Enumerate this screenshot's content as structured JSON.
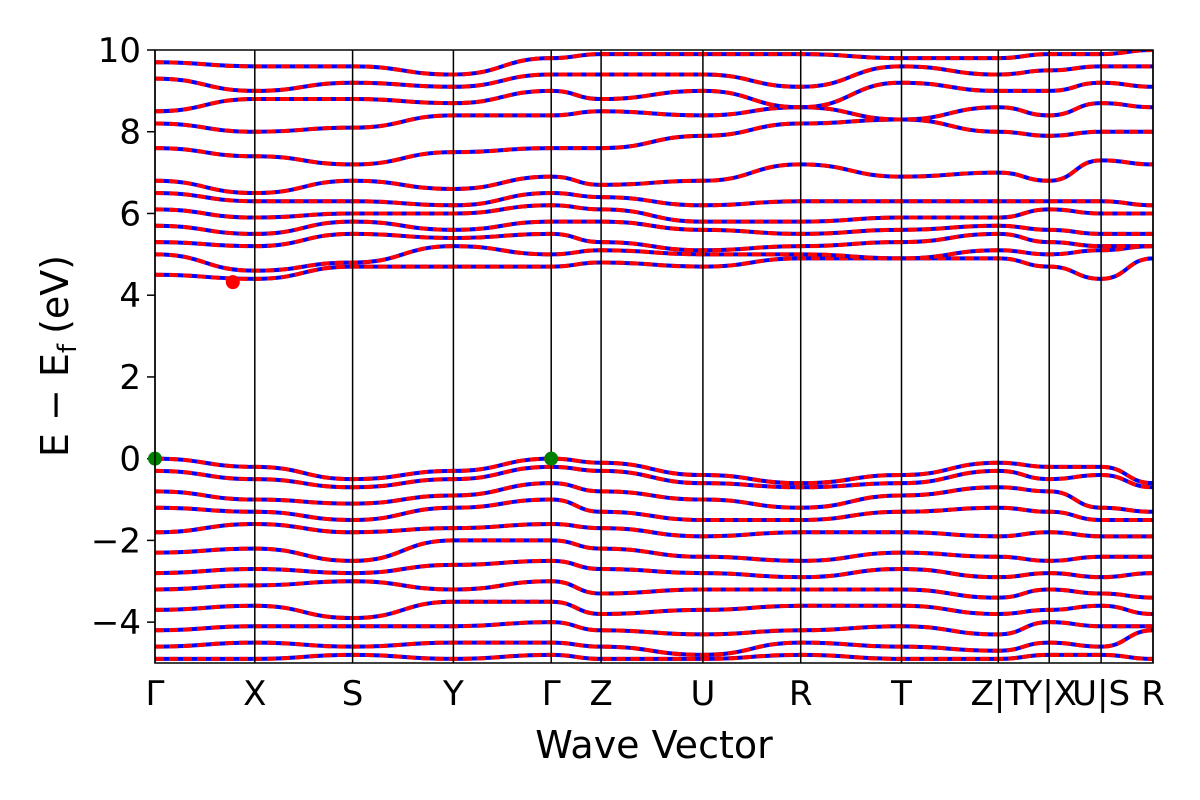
{
  "chart_data": {
    "type": "band-structure",
    "xlabel": "Wave Vector",
    "ylabel": {
      "main": "E − E",
      "sub": "f",
      "unit": "(eV)"
    },
    "xlim": [
      0,
      10
    ],
    "ylim": [
      -5,
      10
    ],
    "xticks": [
      {
        "value": 0,
        "label": "Γ"
      },
      {
        "value": 1.0,
        "label": "X"
      },
      {
        "value": 1.98,
        "label": "S"
      },
      {
        "value": 2.99,
        "label": "Y"
      },
      {
        "value": 3.97,
        "label": "Γ"
      },
      {
        "value": 4.47,
        "label": "Z"
      },
      {
        "value": 5.49,
        "label": "U"
      },
      {
        "value": 6.47,
        "label": "R"
      },
      {
        "value": 7.48,
        "label": "T"
      },
      {
        "value": 8.45,
        "label": "Z|T"
      },
      {
        "value": 8.96,
        "label": "Y|X"
      },
      {
        "value": 9.48,
        "label": "U|S"
      },
      {
        "value": 10,
        "label": "R"
      }
    ],
    "yticks": [
      {
        "value": -4,
        "label": "−4"
      },
      {
        "value": -2,
        "label": "−2"
      },
      0,
      2,
      4,
      6,
      8,
      10
    ],
    "x": [
      0,
      1.0,
      1.98,
      2.99,
      3.97,
      4.47,
      5.49,
      6.47,
      7.48,
      8.45,
      8.96,
      9.48,
      10
    ],
    "line_colors": [
      "#0000ff",
      "#ff0000"
    ],
    "series": [
      {
        "values": [
          4.5,
          4.4,
          4.7,
          4.7,
          4.7,
          4.8,
          4.7,
          4.9,
          4.9,
          4.9,
          4.7,
          4.4,
          4.9
        ]
      },
      {
        "values": [
          5.0,
          4.6,
          4.8,
          5.2,
          5.0,
          5.1,
          5.0,
          5.0,
          4.9,
          5.1,
          5.0,
          5.1,
          5.2
        ]
      },
      {
        "values": [
          5.3,
          5.2,
          5.5,
          5.4,
          5.5,
          5.3,
          5.1,
          5.2,
          5.3,
          5.5,
          5.3,
          5.2,
          5.2
        ]
      },
      {
        "values": [
          5.7,
          5.5,
          5.8,
          5.6,
          5.8,
          5.8,
          5.6,
          5.5,
          5.6,
          5.7,
          5.6,
          5.5,
          5.5
        ]
      },
      {
        "values": [
          6.1,
          5.9,
          6.0,
          6.0,
          6.2,
          6.1,
          5.8,
          5.8,
          5.9,
          5.9,
          6.1,
          6.0,
          6.0
        ]
      },
      {
        "values": [
          6.5,
          6.3,
          6.3,
          6.2,
          6.5,
          6.4,
          6.2,
          6.3,
          6.3,
          6.3,
          6.3,
          6.3,
          6.2
        ]
      },
      {
        "values": [
          6.8,
          6.5,
          6.8,
          6.6,
          6.9,
          6.7,
          6.8,
          7.2,
          6.9,
          7.0,
          6.8,
          7.3,
          7.2
        ]
      },
      {
        "values": [
          7.6,
          7.4,
          7.2,
          7.5,
          7.6,
          7.6,
          7.9,
          8.2,
          8.3,
          8.0,
          7.9,
          8.0,
          8.0
        ]
      },
      {
        "values": [
          8.2,
          8.0,
          8.1,
          8.4,
          8.4,
          8.5,
          8.4,
          8.6,
          8.3,
          8.6,
          8.4,
          8.7,
          8.6
        ]
      },
      {
        "values": [
          8.5,
          8.8,
          8.8,
          8.7,
          9.0,
          8.8,
          9.0,
          8.6,
          9.2,
          9.0,
          9.0,
          9.2,
          9.1
        ]
      },
      {
        "values": [
          9.3,
          9.0,
          9.2,
          9.1,
          9.4,
          9.4,
          9.4,
          9.1,
          9.6,
          9.4,
          9.5,
          9.6,
          9.6
        ]
      },
      {
        "values": [
          9.7,
          9.6,
          9.6,
          9.4,
          9.8,
          9.9,
          9.9,
          9.9,
          9.8,
          9.8,
          9.9,
          9.9,
          10.0
        ]
      },
      {
        "values": [
          0,
          -0.2,
          -0.5,
          -0.3,
          0,
          -0.1,
          -0.4,
          -0.6,
          -0.4,
          -0.1,
          -0.2,
          -0.2,
          -0.6
        ]
      },
      {
        "values": [
          -0.3,
          -0.5,
          -0.7,
          -0.5,
          -0.2,
          -0.3,
          -0.6,
          -0.7,
          -0.6,
          -0.3,
          -0.5,
          -0.4,
          -0.7
        ]
      },
      {
        "values": [
          -0.8,
          -1.0,
          -1.1,
          -0.9,
          -0.6,
          -0.8,
          -1.0,
          -1.2,
          -0.9,
          -0.7,
          -0.8,
          -1.2,
          -1.3
        ]
      },
      {
        "values": [
          -1.2,
          -1.3,
          -1.5,
          -1.2,
          -1.0,
          -1.3,
          -1.5,
          -1.5,
          -1.3,
          -1.2,
          -1.3,
          -1.5,
          -1.5
        ]
      },
      {
        "values": [
          -1.8,
          -1.6,
          -1.8,
          -1.7,
          -1.6,
          -1.7,
          -1.9,
          -1.8,
          -1.8,
          -1.9,
          -1.8,
          -1.9,
          -1.9
        ]
      },
      {
        "values": [
          -2.3,
          -2.2,
          -2.5,
          -2.0,
          -2.0,
          -2.2,
          -2.4,
          -2.5,
          -2.3,
          -2.4,
          -2.5,
          -2.4,
          -2.4
        ]
      },
      {
        "values": [
          -2.8,
          -2.7,
          -2.8,
          -2.6,
          -2.5,
          -2.7,
          -2.8,
          -2.9,
          -2.7,
          -2.9,
          -2.8,
          -2.9,
          -2.8
        ]
      },
      {
        "values": [
          -3.2,
          -3.1,
          -3.0,
          -3.2,
          -3.0,
          -3.3,
          -3.2,
          -3.2,
          -3.2,
          -3.4,
          -3.2,
          -3.3,
          -3.4
        ]
      },
      {
        "values": [
          -3.7,
          -3.6,
          -3.9,
          -3.5,
          -3.5,
          -3.8,
          -3.7,
          -3.6,
          -3.6,
          -3.8,
          -3.7,
          -3.6,
          -3.8
        ]
      },
      {
        "values": [
          -4.2,
          -4.1,
          -4.1,
          -4.1,
          -4.0,
          -4.2,
          -4.3,
          -4.2,
          -4.1,
          -4.3,
          -4.0,
          -4.1,
          -4.1
        ]
      },
      {
        "values": [
          -4.6,
          -4.5,
          -4.6,
          -4.5,
          -4.5,
          -4.6,
          -4.8,
          -4.5,
          -4.6,
          -4.7,
          -4.5,
          -4.6,
          -4.2
        ]
      },
      {
        "values": [
          -4.9,
          -4.9,
          -4.8,
          -4.9,
          -4.8,
          -4.9,
          -4.9,
          -4.8,
          -4.9,
          -4.9,
          -4.8,
          -4.8,
          -4.9
        ]
      }
    ],
    "points": [
      {
        "x": 0,
        "y": 0,
        "color": "#008000"
      },
      {
        "x": 3.97,
        "y": 0,
        "color": "#008000"
      },
      {
        "x": 0.78,
        "y": 4.32,
        "color": "#ff0000"
      }
    ]
  }
}
